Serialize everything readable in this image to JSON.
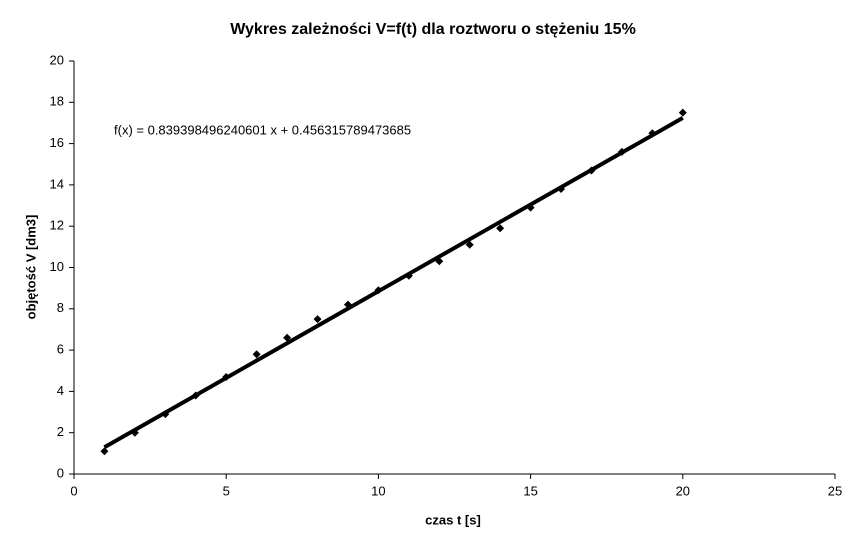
{
  "chart_data": {
    "type": "scatter",
    "title": "Wykres zależności V=f(t) dla roztworu o stężeniu 15%",
    "x_label": "czas t [s]",
    "y_label": "objętość V [dm3]",
    "series": [
      {
        "name": "V",
        "color": "#000000",
        "x": [
          1,
          2,
          3,
          4,
          5,
          6,
          7,
          8,
          9,
          10,
          11,
          12,
          13,
          14,
          15,
          16,
          17,
          18,
          19,
          20
        ],
        "values": [
          1.1,
          2.0,
          2.9,
          3.8,
          4.7,
          5.8,
          6.6,
          7.5,
          8.2,
          8.9,
          9.6,
          10.3,
          11.1,
          11.9,
          12.9,
          13.8,
          14.7,
          15.6,
          16.5,
          17.5
        ]
      }
    ],
    "trendline": {
      "slope": 0.839398496240601,
      "intercept": 0.456315789473685,
      "label": "f(x) = 0.839398496240601 x + 0.456315789473685"
    },
    "xlim": [
      0,
      25
    ],
    "xticks": [
      0,
      5,
      10,
      15,
      20,
      25
    ],
    "ylim": [
      0,
      20
    ],
    "yticks": [
      0,
      2,
      4,
      6,
      8,
      10,
      12,
      14,
      16,
      18,
      20
    ],
    "grid": false
  }
}
